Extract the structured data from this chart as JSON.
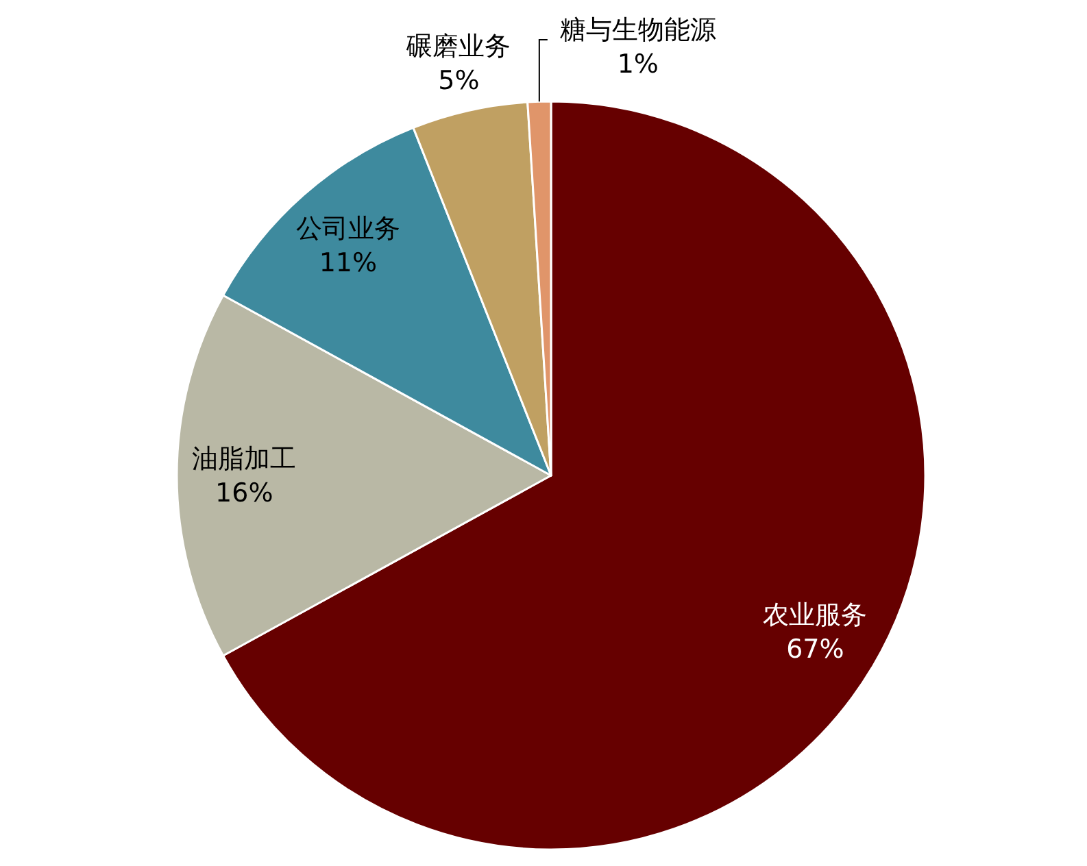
{
  "chart_data": {
    "type": "pie",
    "categories": [
      "农业服务",
      "油脂加工",
      "公司业务",
      "碾磨业务",
      "糖与生物能源"
    ],
    "values": [
      67,
      16,
      11,
      5,
      1
    ],
    "value_labels": [
      "67%",
      "16%",
      "11%",
      "5%",
      "1%"
    ],
    "colors": [
      "#660000",
      "#b9b8a5",
      "#3e8a9e",
      "#c0a062",
      "#e0956a"
    ]
  }
}
